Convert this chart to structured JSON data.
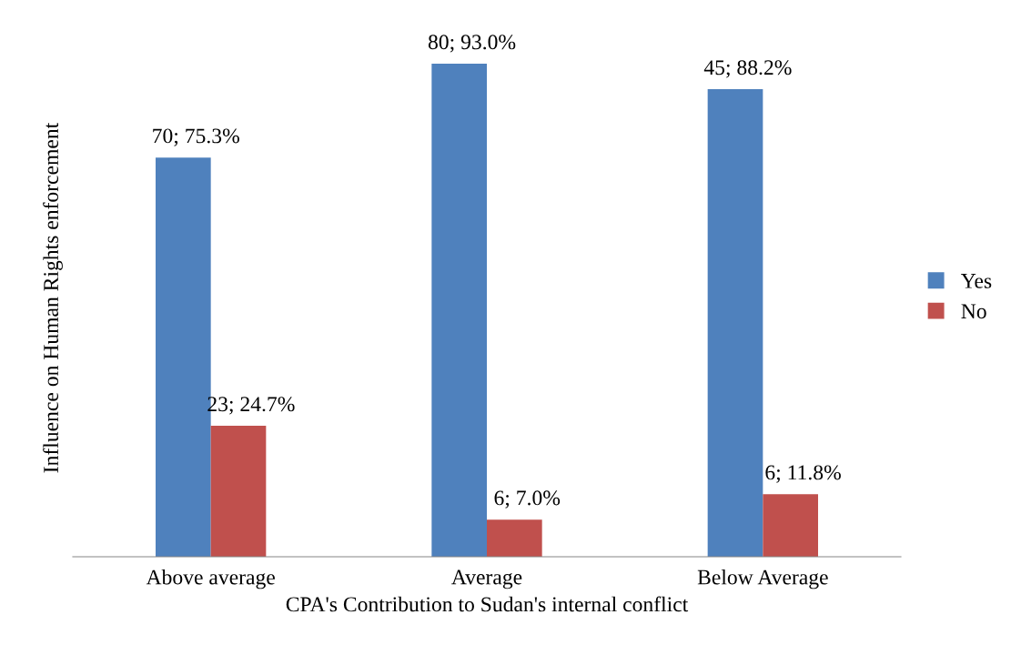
{
  "chart_data": {
    "type": "bar",
    "xlabel": "CPA's Contribution to Sudan's internal conflict",
    "ylabel": "Influence on Human Rights enforcement",
    "categories": [
      "Above average",
      "Average",
      "Below Average"
    ],
    "series": [
      {
        "name": "Yes",
        "color": "#4f81bd",
        "values": [
          75.3,
          93.0,
          88.2
        ],
        "value_labels": [
          "70; 75.3%",
          "80; 93.0%",
          "45; 88.2%"
        ]
      },
      {
        "name": "No",
        "color": "#c0504d",
        "values": [
          24.7,
          7.0,
          11.8
        ],
        "value_labels": [
          "23; 24.7%",
          "6; 7.0%",
          "6; 11.8%"
        ]
      }
    ],
    "tick_labels": "x",
    "legend": "right",
    "grid": false
  }
}
